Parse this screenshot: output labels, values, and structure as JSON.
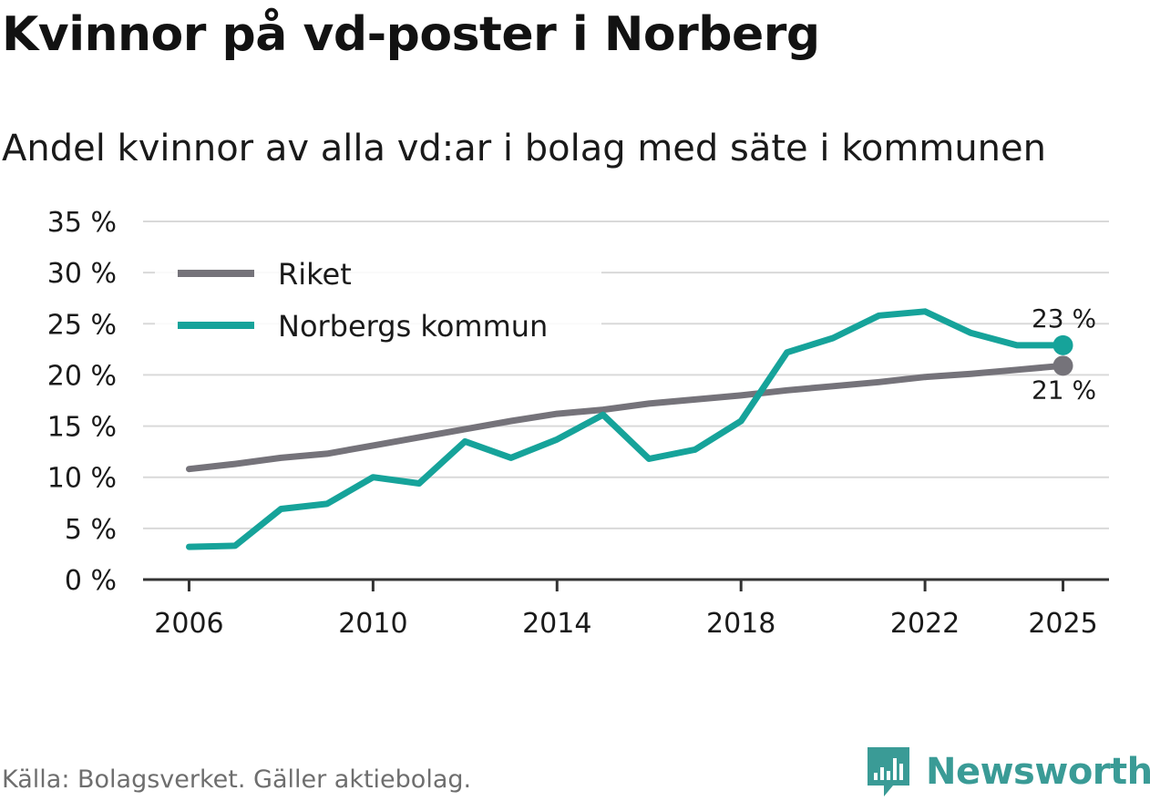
{
  "title": "Kvinnor på vd-poster i Norberg",
  "subtitle": "Andel kvinnor av alla vd:ar i bolag med säte i kommunen",
  "source": "Källa: Bolagsverket. Gäller aktiebolag.",
  "brand": {
    "name": "Newsworthy",
    "icon": "bar-chart-icon"
  },
  "colors": {
    "riket": "#75737a",
    "norberg": "#16a39a",
    "grid": "#d9d9d9",
    "axis": "#333333",
    "brand": "#3a9b96"
  },
  "chart_data": {
    "type": "line",
    "title": "Kvinnor på vd-poster i Norberg",
    "subtitle": "Andel kvinnor av alla vd:ar i bolag med säte i kommunen",
    "xlabel": "",
    "ylabel": "",
    "x": [
      2006,
      2007,
      2008,
      2009,
      2010,
      2011,
      2012,
      2013,
      2014,
      2015,
      2016,
      2017,
      2018,
      2019,
      2020,
      2021,
      2022,
      2023,
      2024,
      2025
    ],
    "xlim": [
      2005,
      2026
    ],
    "ylim": [
      0,
      35
    ],
    "x_ticks": [
      2006,
      2010,
      2014,
      2018,
      2022,
      2025
    ],
    "x_tick_labels": [
      "2006",
      "2010",
      "2014",
      "2018",
      "2022",
      "2025"
    ],
    "y_ticks": [
      0,
      5,
      10,
      15,
      20,
      25,
      30,
      35
    ],
    "y_tick_labels": [
      "0 %",
      "5 %",
      "10 %",
      "15 %",
      "20 %",
      "25 %",
      "30 %",
      "35 %"
    ],
    "grid": true,
    "legend_position": "top-left",
    "series": [
      {
        "name": "Riket",
        "color": "#75737a",
        "values": [
          10.8,
          11.3,
          11.9,
          12.3,
          13.1,
          13.9,
          14.7,
          15.5,
          16.2,
          16.6,
          17.2,
          17.6,
          18.0,
          18.5,
          18.9,
          19.3,
          19.8,
          20.1,
          20.5,
          20.9
        ],
        "end_label": "21 %"
      },
      {
        "name": "Norbergs kommun",
        "color": "#16a39a",
        "values": [
          3.2,
          3.3,
          6.9,
          7.4,
          10.0,
          9.4,
          13.5,
          11.9,
          13.7,
          16.1,
          11.8,
          12.7,
          15.5,
          22.2,
          23.6,
          25.8,
          26.2,
          24.1,
          22.9,
          22.9
        ],
        "end_label": "23 %"
      }
    ]
  }
}
